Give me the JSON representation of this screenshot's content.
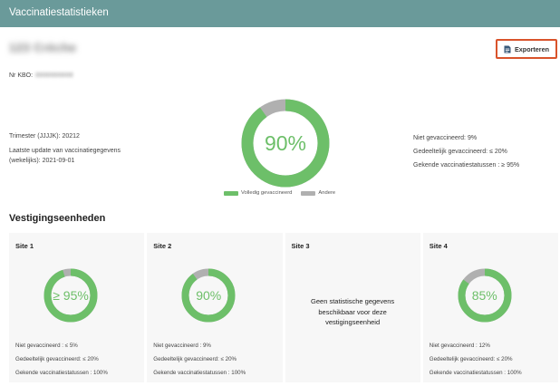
{
  "header": {
    "title": "Vaccinatiestatistieken"
  },
  "organization": {
    "name": "123 Crèche",
    "kbo_label": "Nr KBO:",
    "kbo_value": "0000000000"
  },
  "toolbar": {
    "export_label": "Exporteren",
    "export_icon": "document-icon"
  },
  "summary": {
    "trimester_label": "Trimester (JJJJK):",
    "trimester_value": "20212",
    "update_label_line1": "Laatste update van vaccinatiegegevens",
    "update_label_line2": "(wekelijks):",
    "update_value": "2021-09-01",
    "percent_label": "90%",
    "percent_value": 90,
    "stats": [
      {
        "label": "Niet gevaccineerd:",
        "value": "9%"
      },
      {
        "label": "Gedeeltelijk gevaccineerd:",
        "value": "≤ 20%"
      },
      {
        "label": "Gekende vaccinatiestatussen :",
        "value": "≥ 95%"
      }
    ]
  },
  "legend": {
    "vaccinated": "Volledig gevaccineerd",
    "other": "Andere"
  },
  "colors": {
    "header": "#6a9a9a",
    "vaccinated": "#6dbf69",
    "other": "#b0b0b0",
    "accent": "#d9532b"
  },
  "section": {
    "title": "Vestigingseenheden"
  },
  "sites": [
    {
      "title": "Site 1",
      "percent_label": "≥ 95%",
      "percent_value": 95,
      "stats": [
        {
          "label": "Niet gevaccineerd :",
          "value": "≤ 5%"
        },
        {
          "label": "Gedeeltelijk gevaccineerd:",
          "value": "≤ 20%"
        },
        {
          "label": "Gekende vaccinatiestatussen :",
          "value": "100%"
        }
      ]
    },
    {
      "title": "Site 2",
      "percent_label": "90%",
      "percent_value": 90,
      "stats": [
        {
          "label": "Niet gevaccineerd :",
          "value": "9%"
        },
        {
          "label": "Gedeeltelijk gevaccineerd:",
          "value": "≤ 20%"
        },
        {
          "label": "Gekende vaccinatiestatussen :",
          "value": "100%"
        }
      ]
    },
    {
      "title": "Site 3",
      "no_data": "Geen statistische gegevens beschikbaar voor deze vestigingseenheid"
    },
    {
      "title": "Site 4",
      "percent_label": "85%",
      "percent_value": 85,
      "stats": [
        {
          "label": "Niet gevaccineerd :",
          "value": "12%"
        },
        {
          "label": "Gedeeltelijk gevaccineerd:",
          "value": "≤ 20%"
        },
        {
          "label": "Gekende vaccinatiestatussen :",
          "value": "100%"
        }
      ]
    }
  ]
}
